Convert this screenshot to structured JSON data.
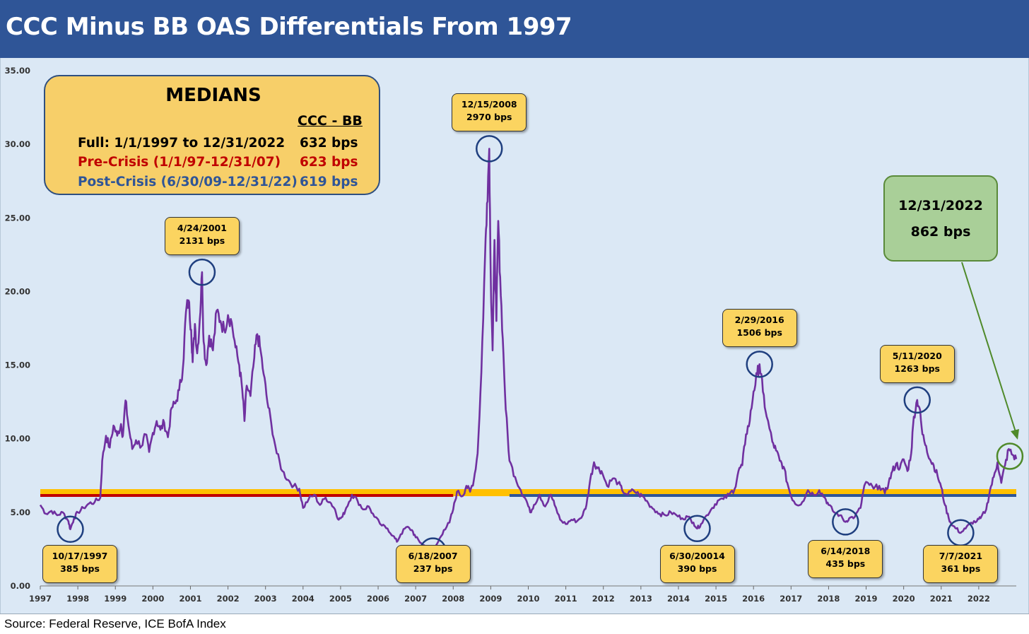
{
  "header": {
    "title": "CCC Minus BB OAS Differentials From 1997"
  },
  "source": "Source: Federal Reserve, ICE BofA Index",
  "medians": {
    "title": "MEDIANS",
    "column_header": "CCC - BB",
    "rows": [
      {
        "label": "Full: 1/1/1997 to 12/31/2022",
        "value": "632 bps",
        "color": "#000000"
      },
      {
        "label": "Pre-Crisis (1/1/97-12/31/07)",
        "value": "623 bps",
        "color": "#c00000"
      },
      {
        "label": "Post-Crisis (6/30/09-12/31/22)",
        "value": "619 bps",
        "color": "#2f5597"
      }
    ]
  },
  "latest": {
    "date": "12/31/2022",
    "value": "862 bps"
  },
  "colors": {
    "header_bg": "#2f5597",
    "plot_bg": "#dbe8f5",
    "line": "#7030a0",
    "full_median": "#ffc000",
    "pre_crisis_median": "#c00000",
    "post_crisis_median": "#2f5597",
    "circle": "#1f3f7f",
    "annotation_bg": "#fbd460",
    "latest_bg": "#a9cf98",
    "latest_arrow": "#4f8a2a"
  },
  "chart_data": {
    "type": "line",
    "title": "CCC Minus BB OAS Differentials From 1997",
    "xlabel": "",
    "ylabel": "",
    "xlim": [
      1997.0,
      2023.0
    ],
    "ylim": [
      0,
      35
    ],
    "y_ticks": [
      "0.00",
      "5.00",
      "10.00",
      "15.00",
      "20.00",
      "25.00",
      "30.00",
      "35.00"
    ],
    "x_ticks": [
      "1997",
      "1998",
      "1999",
      "2000",
      "2001",
      "2002",
      "2003",
      "2004",
      "2005",
      "2006",
      "2007",
      "2008",
      "2009",
      "2010",
      "2011",
      "2012",
      "2013",
      "2014",
      "2015",
      "2016",
      "2017",
      "2018",
      "2019",
      "2020",
      "2021",
      "2022"
    ],
    "series": [
      {
        "name": "CCC - BB OAS (%)",
        "points": [
          [
            1997.0,
            5.5
          ],
          [
            1997.15,
            4.9
          ],
          [
            1997.3,
            5.1
          ],
          [
            1997.45,
            4.8
          ],
          [
            1997.6,
            5.0
          ],
          [
            1997.75,
            4.4
          ],
          [
            1997.8,
            3.85
          ],
          [
            1997.9,
            4.6
          ],
          [
            1998.0,
            5.0
          ],
          [
            1998.15,
            5.3
          ],
          [
            1998.3,
            5.6
          ],
          [
            1998.45,
            5.7
          ],
          [
            1998.6,
            6.0
          ],
          [
            1998.65,
            8.5
          ],
          [
            1998.75,
            10.2
          ],
          [
            1998.85,
            9.4
          ],
          [
            1998.95,
            10.9
          ],
          [
            1999.05,
            10.2
          ],
          [
            1999.15,
            11.0
          ],
          [
            1999.2,
            10.2
          ],
          [
            1999.27,
            12.6
          ],
          [
            1999.35,
            10.9
          ],
          [
            1999.45,
            9.3
          ],
          [
            1999.55,
            9.9
          ],
          [
            1999.7,
            9.5
          ],
          [
            1999.8,
            10.3
          ],
          [
            1999.9,
            9.1
          ],
          [
            2000.0,
            10.4
          ],
          [
            2000.1,
            11.2
          ],
          [
            2000.2,
            10.6
          ],
          [
            2000.3,
            11.1
          ],
          [
            2000.4,
            10.1
          ],
          [
            2000.5,
            12.1
          ],
          [
            2000.6,
            12.4
          ],
          [
            2000.7,
            13.3
          ],
          [
            2000.8,
            14.8
          ],
          [
            2000.88,
            18.6
          ],
          [
            2000.95,
            19.4
          ],
          [
            2001.02,
            17.4
          ],
          [
            2001.06,
            15.2
          ],
          [
            2001.12,
            17.8
          ],
          [
            2001.18,
            15.8
          ],
          [
            2001.25,
            18.1
          ],
          [
            2001.31,
            21.31
          ],
          [
            2001.35,
            16.6
          ],
          [
            2001.42,
            15.0
          ],
          [
            2001.5,
            17.0
          ],
          [
            2001.6,
            16.0
          ],
          [
            2001.7,
            18.7
          ],
          [
            2001.8,
            18.0
          ],
          [
            2001.9,
            17.4
          ],
          [
            2002.0,
            18.4
          ],
          [
            2002.1,
            17.9
          ],
          [
            2002.2,
            16.2
          ],
          [
            2002.3,
            15.0
          ],
          [
            2002.38,
            13.3
          ],
          [
            2002.44,
            11.2
          ],
          [
            2002.5,
            13.6
          ],
          [
            2002.6,
            12.9
          ],
          [
            2002.7,
            15.5
          ],
          [
            2002.78,
            17.1
          ],
          [
            2002.85,
            16.3
          ],
          [
            2002.95,
            14.4
          ],
          [
            2003.05,
            12.5
          ],
          [
            2003.15,
            11.1
          ],
          [
            2003.3,
            9.0
          ],
          [
            2003.45,
            7.8
          ],
          [
            2003.6,
            7.2
          ],
          [
            2003.75,
            6.8
          ],
          [
            2003.9,
            6.6
          ],
          [
            2004.0,
            5.3
          ],
          [
            2004.15,
            5.9
          ],
          [
            2004.3,
            6.2
          ],
          [
            2004.45,
            5.5
          ],
          [
            2004.6,
            6.0
          ],
          [
            2004.75,
            5.6
          ],
          [
            2004.85,
            5.2
          ],
          [
            2004.95,
            4.5
          ],
          [
            2005.05,
            4.7
          ],
          [
            2005.15,
            5.3
          ],
          [
            2005.3,
            6.2
          ],
          [
            2005.45,
            5.8
          ],
          [
            2005.6,
            5.2
          ],
          [
            2005.75,
            5.4
          ],
          [
            2005.9,
            4.7
          ],
          [
            2006.1,
            4.1
          ],
          [
            2006.25,
            3.9
          ],
          [
            2006.4,
            3.4
          ],
          [
            2006.5,
            3.0
          ],
          [
            2006.6,
            3.5
          ],
          [
            2006.75,
            4.0
          ],
          [
            2006.9,
            3.8
          ],
          [
            2007.0,
            3.3
          ],
          [
            2007.15,
            2.9
          ],
          [
            2007.3,
            2.6
          ],
          [
            2007.46,
            2.37
          ],
          [
            2007.6,
            3.0
          ],
          [
            2007.75,
            3.8
          ],
          [
            2007.9,
            4.3
          ],
          [
            2008.0,
            5.2
          ],
          [
            2008.1,
            6.4
          ],
          [
            2008.25,
            6.1
          ],
          [
            2008.35,
            6.8
          ],
          [
            2008.45,
            6.4
          ],
          [
            2008.55,
            7.2
          ],
          [
            2008.65,
            9.0
          ],
          [
            2008.75,
            14.5
          ],
          [
            2008.85,
            22.5
          ],
          [
            2008.9,
            26.0
          ],
          [
            2008.96,
            29.7
          ],
          [
            2009.0,
            21.0
          ],
          [
            2009.05,
            16.0
          ],
          [
            2009.1,
            23.5
          ],
          [
            2009.15,
            18.0
          ],
          [
            2009.2,
            24.8
          ],
          [
            2009.25,
            21.0
          ],
          [
            2009.32,
            16.8
          ],
          [
            2009.4,
            12.0
          ],
          [
            2009.5,
            8.5
          ],
          [
            2009.65,
            7.4
          ],
          [
            2009.8,
            6.5
          ],
          [
            2009.95,
            5.8
          ],
          [
            2010.05,
            5.0
          ],
          [
            2010.15,
            5.5
          ],
          [
            2010.3,
            6.2
          ],
          [
            2010.45,
            5.4
          ],
          [
            2010.6,
            6.2
          ],
          [
            2010.7,
            5.5
          ],
          [
            2010.85,
            4.5
          ],
          [
            2011.0,
            4.2
          ],
          [
            2011.15,
            4.5
          ],
          [
            2011.3,
            4.4
          ],
          [
            2011.45,
            4.8
          ],
          [
            2011.55,
            5.5
          ],
          [
            2011.65,
            7.2
          ],
          [
            2011.75,
            8.4
          ],
          [
            2011.85,
            8.0
          ],
          [
            2011.95,
            7.8
          ],
          [
            2012.1,
            6.8
          ],
          [
            2012.25,
            7.3
          ],
          [
            2012.4,
            7.0
          ],
          [
            2012.5,
            6.5
          ],
          [
            2012.65,
            6.2
          ],
          [
            2012.8,
            6.5
          ],
          [
            2012.95,
            6.2
          ],
          [
            2013.05,
            6.1
          ],
          [
            2013.2,
            5.6
          ],
          [
            2013.35,
            5.2
          ],
          [
            2013.5,
            4.9
          ],
          [
            2013.65,
            4.8
          ],
          [
            2013.8,
            5.0
          ],
          [
            2013.95,
            4.8
          ],
          [
            2014.1,
            4.6
          ],
          [
            2014.25,
            4.7
          ],
          [
            2014.4,
            4.3
          ],
          [
            2014.5,
            3.9
          ],
          [
            2014.6,
            4.2
          ],
          [
            2014.75,
            4.8
          ],
          [
            2014.9,
            5.3
          ],
          [
            2015.05,
            5.8
          ],
          [
            2015.2,
            5.9
          ],
          [
            2015.35,
            6.2
          ],
          [
            2015.5,
            6.6
          ],
          [
            2015.6,
            7.8
          ],
          [
            2015.7,
            8.2
          ],
          [
            2015.8,
            10.3
          ],
          [
            2015.9,
            11.2
          ],
          [
            2016.0,
            13.2
          ],
          [
            2016.1,
            14.4
          ],
          [
            2016.16,
            15.06
          ],
          [
            2016.25,
            13.2
          ],
          [
            2016.35,
            11.5
          ],
          [
            2016.5,
            9.8
          ],
          [
            2016.6,
            9.2
          ],
          [
            2016.7,
            8.5
          ],
          [
            2016.8,
            8.1
          ],
          [
            2016.9,
            7.0
          ],
          [
            2017.0,
            6.1
          ],
          [
            2017.15,
            5.5
          ],
          [
            2017.3,
            5.7
          ],
          [
            2017.45,
            6.5
          ],
          [
            2017.6,
            6.2
          ],
          [
            2017.75,
            6.5
          ],
          [
            2017.9,
            6.0
          ],
          [
            2018.0,
            5.5
          ],
          [
            2018.15,
            5.0
          ],
          [
            2018.3,
            4.8
          ],
          [
            2018.45,
            4.35
          ],
          [
            2018.55,
            4.6
          ],
          [
            2018.7,
            4.7
          ],
          [
            2018.85,
            5.3
          ],
          [
            2018.95,
            6.8
          ],
          [
            2019.05,
            7.0
          ],
          [
            2019.2,
            6.6
          ],
          [
            2019.35,
            6.8
          ],
          [
            2019.5,
            6.3
          ],
          [
            2019.6,
            7.0
          ],
          [
            2019.7,
            7.8
          ],
          [
            2019.8,
            8.3
          ],
          [
            2019.9,
            8.0
          ],
          [
            2020.0,
            8.6
          ],
          [
            2020.1,
            7.8
          ],
          [
            2020.2,
            9.0
          ],
          [
            2020.27,
            11.5
          ],
          [
            2020.36,
            12.63
          ],
          [
            2020.42,
            12.1
          ],
          [
            2020.5,
            10.3
          ],
          [
            2020.6,
            9.5
          ],
          [
            2020.7,
            8.6
          ],
          [
            2020.8,
            8.2
          ],
          [
            2020.9,
            7.5
          ],
          [
            2021.0,
            6.7
          ],
          [
            2021.1,
            5.5
          ],
          [
            2021.2,
            4.6
          ],
          [
            2021.3,
            4.1
          ],
          [
            2021.4,
            3.9
          ],
          [
            2021.52,
            3.61
          ],
          [
            2021.65,
            3.9
          ],
          [
            2021.8,
            4.3
          ],
          [
            2021.95,
            4.4
          ],
          [
            2022.05,
            4.6
          ],
          [
            2022.2,
            5.2
          ],
          [
            2022.3,
            6.5
          ],
          [
            2022.4,
            7.4
          ],
          [
            2022.5,
            8.4
          ],
          [
            2022.6,
            7.0
          ],
          [
            2022.7,
            8.2
          ],
          [
            2022.8,
            9.3
          ],
          [
            2022.9,
            8.9
          ],
          [
            2023.0,
            8.62
          ]
        ]
      }
    ],
    "reference_lines": [
      {
        "name": "Full median",
        "value": 6.32,
        "x_start": 1997.0,
        "x_end": 2023.0,
        "color": "#ffc000"
      },
      {
        "name": "Pre-Crisis median",
        "value": 6.23,
        "x_start": 1997.0,
        "x_end": 2008.0,
        "color": "#c00000"
      },
      {
        "name": "Post-Crisis median",
        "value": 6.19,
        "x_start": 2009.5,
        "x_end": 2023.0,
        "color": "#2f5597"
      }
    ],
    "annotations": [
      {
        "lines": [
          "10/17/1997",
          "385 bps"
        ],
        "x": 1997.8,
        "y": 3.85,
        "box": "below"
      },
      {
        "lines": [
          "4/24/2001",
          "2131 bps"
        ],
        "x": 2001.31,
        "y": 21.31,
        "box": "above"
      },
      {
        "lines": [
          "6/18/2007",
          "237 bps"
        ],
        "x": 2007.46,
        "y": 2.37,
        "box": "below"
      },
      {
        "lines": [
          "12/15/2008",
          "2970 bps"
        ],
        "x": 2008.96,
        "y": 29.7,
        "box": "above"
      },
      {
        "lines": [
          "6/30/20014",
          "390 bps"
        ],
        "x": 2014.5,
        "y": 3.9,
        "box": "below"
      },
      {
        "lines": [
          "2/29/2016",
          "1506 bps"
        ],
        "x": 2016.16,
        "y": 15.06,
        "box": "above"
      },
      {
        "lines": [
          "6/14/2018",
          "435 bps"
        ],
        "x": 2018.45,
        "y": 4.35,
        "box": "below"
      },
      {
        "lines": [
          "5/11/2020",
          "1263 bps"
        ],
        "x": 2020.36,
        "y": 12.63,
        "box": "above"
      },
      {
        "lines": [
          "7/7/2021",
          "361 bps"
        ],
        "x": 2021.52,
        "y": 3.61,
        "box": "below"
      }
    ],
    "latest_point": {
      "x": 2022.98,
      "y": 8.62
    }
  }
}
